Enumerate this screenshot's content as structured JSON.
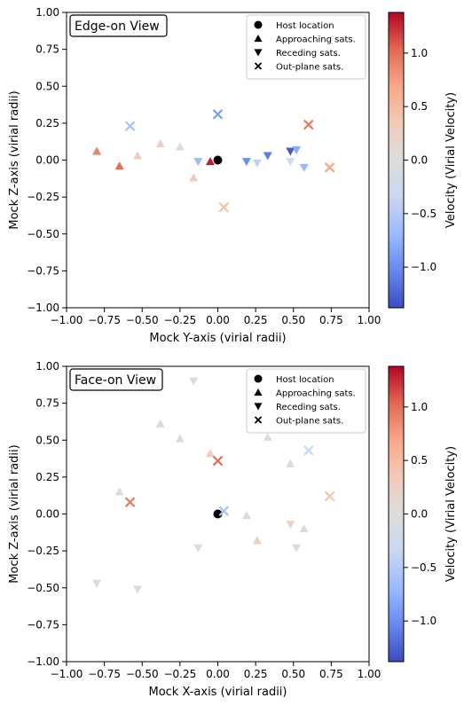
{
  "colorbar": {
    "label": "Velocity (Virial Velocity)",
    "range": [
      -1.38,
      1.38
    ],
    "ticks": [
      -1.0,
      -0.5,
      0.0,
      0.5,
      1.0
    ],
    "tick_labels": [
      "−1.0",
      "−0.5",
      "0.0",
      "0.5",
      "1.0"
    ],
    "colormap": "coolwarm",
    "stops": [
      "#3b4cc0",
      "#6788ee",
      "#9abbff",
      "#c9d7f0",
      "#dddddd",
      "#f2cbb7",
      "#f7a889",
      "#e26952",
      "#b40426"
    ]
  },
  "legend": {
    "placement": "top-right",
    "entries": [
      {
        "marker": "circle",
        "label": "Host location"
      },
      {
        "marker": "triangle-up",
        "label": "Approaching sats."
      },
      {
        "marker": "triangle-down",
        "label": "Receding sats."
      },
      {
        "marker": "x",
        "label": "Out-plane sats."
      }
    ]
  },
  "chart_data": [
    {
      "type": "scatter",
      "title": "Edge-on View",
      "xlabel": "Mock Y-axis (virial radii)",
      "ylabel": "Mock Z-axis (virial radii)",
      "xlim": [
        -1.0,
        1.0
      ],
      "ylim": [
        -1.0,
        1.0
      ],
      "xticks": [
        -1.0,
        -0.75,
        -0.5,
        -0.25,
        0.0,
        0.25,
        0.5,
        0.75,
        1.0
      ],
      "xtick_labels": [
        "−1.00",
        "−0.75",
        "−0.50",
        "−0.25",
        "0.00",
        "0.25",
        "0.50",
        "0.75",
        "1.00"
      ],
      "yticks": [
        -1.0,
        -0.75,
        -0.5,
        -0.25,
        0.0,
        0.25,
        0.5,
        0.75,
        1.0
      ],
      "ytick_labels": [
        "−1.00",
        "−0.75",
        "−0.50",
        "−0.25",
        "0.00",
        "0.25",
        "0.50",
        "0.75",
        "1.00"
      ],
      "grid": false,
      "series": [
        {
          "name": "Host location",
          "marker": "circle",
          "points": [
            {
              "x": 0.0,
              "y": 0.0
            }
          ]
        },
        {
          "name": "Approaching sats.",
          "marker": "triangle-up",
          "points": [
            {
              "x": -0.8,
              "y": 0.06,
              "v": 0.9
            },
            {
              "x": -0.65,
              "y": -0.04,
              "v": 1.0
            },
            {
              "x": -0.53,
              "y": 0.03,
              "v": 0.3
            },
            {
              "x": -0.38,
              "y": 0.11,
              "v": 0.25
            },
            {
              "x": -0.25,
              "y": 0.09,
              "v": 0.05
            },
            {
              "x": -0.16,
              "y": -0.12,
              "v": 0.3
            },
            {
              "x": -0.05,
              "y": -0.01,
              "v": 1.3
            }
          ]
        },
        {
          "name": "Receding sats.",
          "marker": "triangle-down",
          "points": [
            {
              "x": -0.13,
              "y": -0.01,
              "v": -0.7
            },
            {
              "x": 0.19,
              "y": -0.01,
              "v": -1.0
            },
            {
              "x": 0.26,
              "y": -0.02,
              "v": -0.4
            },
            {
              "x": 0.33,
              "y": 0.03,
              "v": -1.1
            },
            {
              "x": 0.48,
              "y": 0.06,
              "v": -1.3
            },
            {
              "x": 0.48,
              "y": -0.01,
              "v": -0.2
            },
            {
              "x": 0.52,
              "y": 0.07,
              "v": -0.8
            },
            {
              "x": 0.57,
              "y": -0.05,
              "v": -0.7
            }
          ]
        },
        {
          "name": "Out-plane sats.",
          "marker": "x",
          "points": [
            {
              "x": -0.58,
              "y": 0.23,
              "v": -0.6
            },
            {
              "x": 0.0,
              "y": 0.31,
              "v": -0.9
            },
            {
              "x": 0.04,
              "y": -0.32,
              "v": 0.45
            },
            {
              "x": 0.6,
              "y": 0.24,
              "v": 0.95
            },
            {
              "x": 0.74,
              "y": -0.05,
              "v": 0.7
            }
          ]
        }
      ]
    },
    {
      "type": "scatter",
      "title": "Face-on View",
      "xlabel": "Mock X-axis (virial radii)",
      "ylabel": "Mock Z-axis (virial radii)",
      "xlim": [
        -1.0,
        1.0
      ],
      "ylim": [
        -1.0,
        1.0
      ],
      "xticks": [
        -1.0,
        -0.75,
        -0.5,
        -0.25,
        0.0,
        0.25,
        0.5,
        0.75,
        1.0
      ],
      "xtick_labels": [
        "−1.00",
        "−0.75",
        "−0.50",
        "−0.25",
        "0.00",
        "0.25",
        "0.50",
        "0.75",
        "1.00"
      ],
      "yticks": [
        -1.0,
        -0.75,
        -0.5,
        -0.25,
        0.0,
        0.25,
        0.5,
        0.75,
        1.0
      ],
      "ytick_labels": [
        "−1.00",
        "−0.75",
        "−0.50",
        "−0.25",
        "0.00",
        "0.25",
        "0.50",
        "0.75",
        "1.00"
      ],
      "grid": false,
      "series": [
        {
          "name": "Host location",
          "marker": "circle",
          "points": [
            {
              "x": 0.0,
              "y": 0.0
            }
          ]
        },
        {
          "name": "Approaching sats.",
          "marker": "triangle-up",
          "points": [
            {
              "x": -0.65,
              "y": 0.15,
              "v": 0.05
            },
            {
              "x": -0.38,
              "y": 0.61,
              "v": 0.05
            },
            {
              "x": -0.25,
              "y": 0.51,
              "v": 0.05
            },
            {
              "x": -0.05,
              "y": 0.41,
              "v": 0.3
            },
            {
              "x": 0.19,
              "y": -0.01,
              "v": 0.05
            },
            {
              "x": 0.26,
              "y": -0.18,
              "v": 0.3
            },
            {
              "x": 0.33,
              "y": 0.52,
              "v": 0.05
            },
            {
              "x": 0.48,
              "y": 0.34,
              "v": 0.05
            },
            {
              "x": 0.57,
              "y": -0.1,
              "v": 0.05
            }
          ]
        },
        {
          "name": "Receding sats.",
          "marker": "triangle-down",
          "points": [
            {
              "x": -0.8,
              "y": -0.47,
              "v": -0.1
            },
            {
              "x": -0.53,
              "y": -0.51,
              "v": -0.05
            },
            {
              "x": -0.16,
              "y": 0.9,
              "v": -0.1
            },
            {
              "x": -0.13,
              "y": -0.23,
              "v": -0.05
            },
            {
              "x": 0.48,
              "y": -0.07,
              "v": 0.2
            },
            {
              "x": 0.52,
              "y": -0.23,
              "v": 0.05
            }
          ]
        },
        {
          "name": "Out-plane sats.",
          "marker": "x",
          "points": [
            {
              "x": -0.58,
              "y": 0.08,
              "v": 0.95
            },
            {
              "x": 0.0,
              "y": 0.36,
              "v": 1.0
            },
            {
              "x": 0.04,
              "y": 0.02,
              "v": -0.6
            },
            {
              "x": 0.6,
              "y": 0.43,
              "v": -0.3
            },
            {
              "x": 0.74,
              "y": 0.12,
              "v": 0.4
            }
          ]
        }
      ]
    }
  ]
}
